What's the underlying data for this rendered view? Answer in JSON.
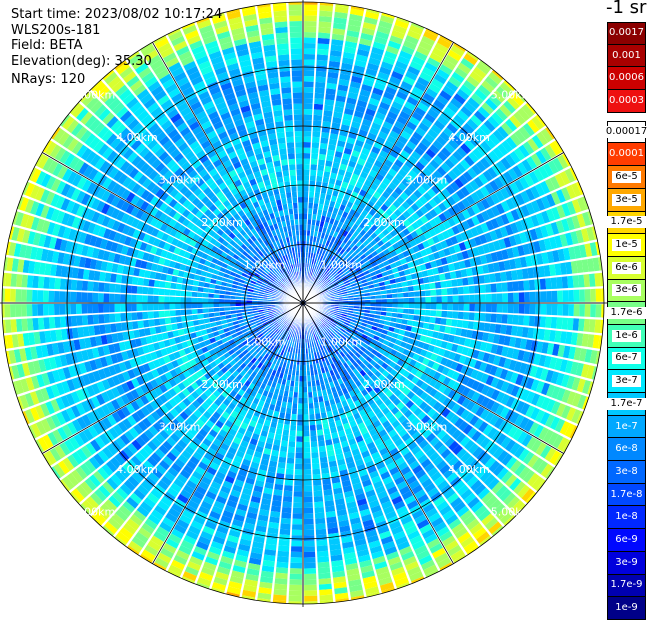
{
  "header": {
    "start_time": "Start time: 2023/08/02 10:17:24",
    "instrument": "WLS200s-181",
    "field": "Field: BETA",
    "elevation": "Elevation(deg): 35.30",
    "nrays": "NRays: 120"
  },
  "colorbar": {
    "unit": "-1 sr",
    "top_group": [
      {
        "label": "0.0017",
        "color": "#8b0000"
      },
      {
        "label": "0.001",
        "color": "#a80000"
      },
      {
        "label": "0.0006",
        "color": "#cc0000"
      },
      {
        "label": "0.0003",
        "color": "#ee1010"
      }
    ],
    "bottom_group": [
      {
        "label": "0.00017",
        "color": "#ffffff"
      },
      {
        "label": "0.0001",
        "color": "#ff3c00"
      },
      {
        "label": "6e-5",
        "color": "#ff7a00"
      },
      {
        "label": "3e-5",
        "color": "#ffa800"
      },
      {
        "label": "1.7e-5",
        "color": "#ffd500"
      },
      {
        "label": "1e-5",
        "color": "#ffff00"
      },
      {
        "label": "6e-6",
        "color": "#d8ff30"
      },
      {
        "label": "3e-6",
        "color": "#a8ff60"
      },
      {
        "label": "1.7e-6",
        "color": "#78ff88"
      },
      {
        "label": "1e-6",
        "color": "#40ffb8"
      },
      {
        "label": "6e-7",
        "color": "#10ffe8"
      },
      {
        "label": "3e-7",
        "color": "#00e8ff"
      },
      {
        "label": "1.7e-7",
        "color": "#00c8ff"
      },
      {
        "label": "1e-7",
        "color": "#00a8ff"
      },
      {
        "label": "6e-8",
        "color": "#0088ff"
      },
      {
        "label": "3e-8",
        "color": "#0068ff"
      },
      {
        "label": "1.7e-8",
        "color": "#0048ff"
      },
      {
        "label": "1e-8",
        "color": "#0028ff"
      },
      {
        "label": "6e-9",
        "color": "#0008ff"
      },
      {
        "label": "3e-9",
        "color": "#0000dd"
      },
      {
        "label": "1.7e-9",
        "color": "#0000b0"
      },
      {
        "label": "1e-9",
        "color": "#000088"
      }
    ]
  },
  "chart_data": {
    "type": "heatmap",
    "projection": "polar-ppi",
    "field": "BETA",
    "elevation_deg": 35.3,
    "nrays": 120,
    "range_km_max": 5.0,
    "range_rings_km": [
      1,
      2,
      3,
      4,
      5
    ],
    "ring_labels": [
      "1.00km",
      "2.00km",
      "3.00km",
      "4.00km",
      "5.00km"
    ],
    "azimuth_spokes_deg": [
      0,
      30,
      60,
      90,
      120,
      150,
      180,
      210,
      240,
      270,
      300,
      330
    ],
    "grid": true,
    "colorbar_placement": "right",
    "beta_profile_summary": [
      {
        "range_km": 0.2,
        "beta": "3e-8"
      },
      {
        "range_km": 1.0,
        "beta": "1e-7"
      },
      {
        "range_km": 1.5,
        "beta": "6e-7"
      },
      {
        "range_km": 3.0,
        "beta": "1.7e-7"
      },
      {
        "range_km": 4.0,
        "beta": "3e-7"
      },
      {
        "range_km": 4.6,
        "beta": "1.7e-6"
      },
      {
        "range_km": 4.9,
        "beta": "1e-5"
      }
    ]
  }
}
